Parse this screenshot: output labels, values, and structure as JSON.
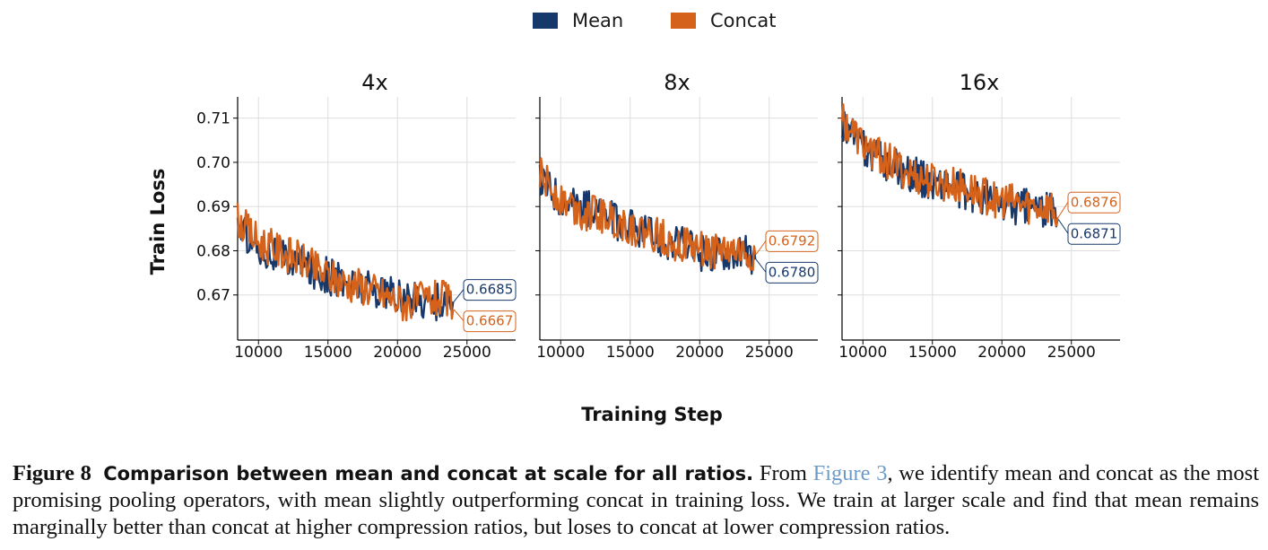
{
  "chart_data": {
    "type": "line",
    "legend": {
      "placement": "top-center",
      "items": [
        {
          "name": "Mean",
          "color": "#17386b"
        },
        {
          "name": "Concat",
          "color": "#d4621a"
        }
      ]
    },
    "xlabel": "Training Step",
    "ylabel": "Train Loss",
    "xlim": [
      8500,
      28500
    ],
    "ylim": [
      0.6598,
      0.7148
    ],
    "grid": true,
    "x_ticks": [
      10000,
      15000,
      20000,
      25000
    ],
    "x_tick_labels": [
      "10000",
      "15000",
      "20000",
      "25000"
    ],
    "y_ticks": [
      0.67,
      0.68,
      0.69,
      0.7,
      0.71
    ],
    "y_tick_labels": [
      "0.67",
      "0.68",
      "0.69",
      "0.70",
      "0.71"
    ],
    "panels": [
      {
        "title": "4x",
        "x_range": [
          8500,
          24000
        ],
        "series": [
          {
            "name": "Mean",
            "color": "#17386b",
            "x": [
              8500,
              10000,
              11500,
              13000,
              14500,
              16000,
              17500,
              19000,
              20500,
              22000,
              23500,
              24000
            ],
            "values": [
              0.686,
              0.681,
              0.679,
              0.677,
              0.675,
              0.673,
              0.672,
              0.671,
              0.669,
              0.669,
              0.668,
              0.6685
            ]
          },
          {
            "name": "Concat",
            "color": "#d4621a",
            "x": [
              8500,
              10000,
              11500,
              13000,
              14500,
              16000,
              17500,
              19000,
              20500,
              22000,
              23500,
              24000
            ],
            "values": [
              0.687,
              0.682,
              0.68,
              0.678,
              0.675,
              0.673,
              0.672,
              0.67,
              0.668,
              0.669,
              0.669,
              0.6667
            ]
          }
        ],
        "annotations": [
          {
            "series": "Mean",
            "label": "0.6685",
            "value": 0.6685
          },
          {
            "series": "Concat",
            "label": "0.6667",
            "value": 0.6667
          }
        ]
      },
      {
        "title": "8x",
        "x_range": [
          8500,
          24000
        ],
        "series": [
          {
            "name": "Mean",
            "color": "#17386b",
            "x": [
              8500,
              10000,
              11500,
              13000,
              14500,
              16000,
              17500,
              19000,
              20500,
              22000,
              23500,
              24000
            ],
            "values": [
              0.696,
              0.692,
              0.69,
              0.688,
              0.686,
              0.684,
              0.682,
              0.681,
              0.679,
              0.68,
              0.679,
              0.678
            ]
          },
          {
            "name": "Concat",
            "color": "#d4621a",
            "x": [
              8500,
              10000,
              11500,
              13000,
              14500,
              16000,
              17500,
              19000,
              20500,
              22000,
              23500,
              24000
            ],
            "values": [
              0.697,
              0.692,
              0.689,
              0.688,
              0.686,
              0.684,
              0.683,
              0.681,
              0.68,
              0.68,
              0.679,
              0.6792
            ]
          }
        ],
        "annotations": [
          {
            "series": "Concat",
            "label": "0.6792",
            "value": 0.6792
          },
          {
            "series": "Mean",
            "label": "0.6780",
            "value": 0.678
          }
        ]
      },
      {
        "title": "16x",
        "x_range": [
          8500,
          24000
        ],
        "series": [
          {
            "name": "Mean",
            "color": "#17386b",
            "x": [
              8500,
              10000,
              11500,
              13000,
              14500,
              16000,
              17500,
              19000,
              20500,
              22000,
              23500,
              24000
            ],
            "values": [
              0.709,
              0.703,
              0.7,
              0.698,
              0.696,
              0.695,
              0.693,
              0.692,
              0.69,
              0.69,
              0.689,
              0.6871
            ]
          },
          {
            "name": "Concat",
            "color": "#d4621a",
            "x": [
              8500,
              10000,
              11500,
              13000,
              14500,
              16000,
              17500,
              19000,
              20500,
              22000,
              23500,
              24000
            ],
            "values": [
              0.71,
              0.704,
              0.701,
              0.698,
              0.696,
              0.695,
              0.694,
              0.692,
              0.691,
              0.69,
              0.69,
              0.6876
            ]
          }
        ],
        "annotations": [
          {
            "series": "Concat",
            "label": "0.6876",
            "value": 0.6876
          },
          {
            "series": "Mean",
            "label": "0.6871",
            "value": 0.6871
          }
        ]
      }
    ]
  },
  "caption": {
    "label": "Figure 8",
    "bold": "Comparison between mean and concat at scale for all ratios.",
    "text1": "From",
    "link": "Figure 3",
    "text2": ", we identify mean and concat as the most promising pooling operators, with mean slightly outperforming concat in training loss. We train at larger scale and find that mean remains marginally better than concat at higher compression ratios, but loses to concat at lower compression ratios."
  }
}
